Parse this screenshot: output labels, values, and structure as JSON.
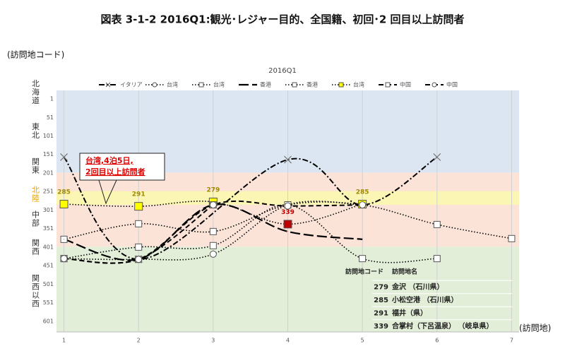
{
  "chart_data": {
    "type": "line",
    "title": "図表 3-1-2 2016Q1:観光･レジャー目的、全国籍、初回･2 回目以上訪問者",
    "subtitle": "2016Q1",
    "ylabel": "(訪問地コード)",
    "xlabel": "(訪問地)",
    "xlim": [
      0.9,
      7.1
    ],
    "xticks": [
      1,
      2,
      3,
      4,
      5,
      6,
      7
    ],
    "ylim": [
      -22,
      630
    ],
    "yticks": [
      1,
      51,
      101,
      151,
      201,
      251,
      301,
      351,
      401,
      451,
      501,
      551,
      601
    ],
    "y_reversed": true,
    "bands": [
      {
        "from": -22,
        "to": 200,
        "color": "#dbe6f2"
      },
      {
        "from": 200,
        "to": 400,
        "color": "#fbe3d8"
      },
      {
        "from": 250,
        "to": 287,
        "color": "#fcf6b4"
      },
      {
        "from": 400,
        "to": 630,
        "color": "#e2eed8"
      }
    ],
    "regions": [
      {
        "label": "北海道",
        "value": -18,
        "color": "#333333"
      },
      {
        "label": "東北",
        "value": 87,
        "color": "#333333"
      },
      {
        "label": "関東",
        "value": 182,
        "color": "#333333"
      },
      {
        "label": "北陸",
        "value": 258,
        "color": "#e6a000"
      },
      {
        "label": "中部",
        "value": 325,
        "color": "#333333"
      },
      {
        "label": "関西",
        "value": 401,
        "color": "#333333"
      },
      {
        "label": "関西以西",
        "value": 519,
        "color": "#333333"
      }
    ],
    "series": [
      {
        "name": "イタリア",
        "color": "#000000",
        "line_style": "dash-dot",
        "marker": "x",
        "marker_fill": "#ffffff",
        "x": [
          1,
          2,
          4,
          5,
          6
        ],
        "values": [
          158,
          434,
          165,
          287,
          158
        ]
      },
      {
        "name": "台湾",
        "color": "#000000",
        "line_style": "dotted",
        "marker": "circle",
        "marker_fill": "#ffffff",
        "x": [
          1,
          2,
          3,
          4,
          5
        ],
        "values": [
          432,
          434,
          420,
          287,
          287
        ]
      },
      {
        "name": "台湾",
        "color": "#000000",
        "line_style": "dotted",
        "marker": "square",
        "marker_fill": "#ffffff",
        "x": [
          1,
          2,
          3,
          4,
          5,
          6,
          7
        ],
        "values": [
          380,
          338,
          359,
          287,
          287,
          340,
          378
        ]
      },
      {
        "name": "香港",
        "color": "#000000",
        "line_style": "long-dashed",
        "marker": "none",
        "marker_fill": "#ffffff",
        "x": [
          1,
          2,
          3,
          4,
          5
        ],
        "values": [
          380,
          434,
          287,
          359,
          380
        ]
      },
      {
        "name": "香港",
        "color": "#000000",
        "line_style": "dotted",
        "marker": "square",
        "marker_fill": "#ffffff",
        "x": [
          1,
          2,
          3,
          4,
          5,
          6
        ],
        "values": [
          432,
          401,
          397,
          287,
          432,
          432
        ]
      },
      {
        "name": "台湾",
        "color": "#000000",
        "line_style": "dotted",
        "marker": "square",
        "marker_fill": "#ffff00",
        "x": [
          1,
          2,
          3,
          4,
          5
        ],
        "values": [
          285,
          291,
          279,
          339,
          285
        ],
        "show_labels": true,
        "label_color": "#a08a00",
        "highlight": {
          "index": 3,
          "color": "#c00000"
        }
      },
      {
        "name": "中国",
        "color": "#000000",
        "line_style": "dashed",
        "marker": "square",
        "marker_fill": "#ffffff",
        "x": [
          1,
          2,
          3
        ],
        "values": [
          432,
          434,
          287
        ]
      },
      {
        "name": "中国",
        "color": "#000000",
        "line_style": "dashed",
        "marker": "circle",
        "marker_fill": "#ffffff",
        "x": [
          1,
          2,
          3,
          4,
          5
        ],
        "values": [
          432,
          434,
          287,
          290,
          287
        ]
      }
    ],
    "annotation": {
      "lines": [
        "台湾,4泊5日,",
        "2回目以上訪問者"
      ],
      "color": "#e00000"
    },
    "table": {
      "header": [
        "訪問地コード",
        "訪問地名"
      ],
      "rows": [
        [
          "279",
          "金沢 （石川県）"
        ],
        [
          "285",
          "小松空港 （石川県）"
        ],
        [
          "291",
          "福井（県）"
        ],
        [
          "339",
          "合掌村（下呂温泉） （岐阜県）"
        ]
      ]
    }
  }
}
